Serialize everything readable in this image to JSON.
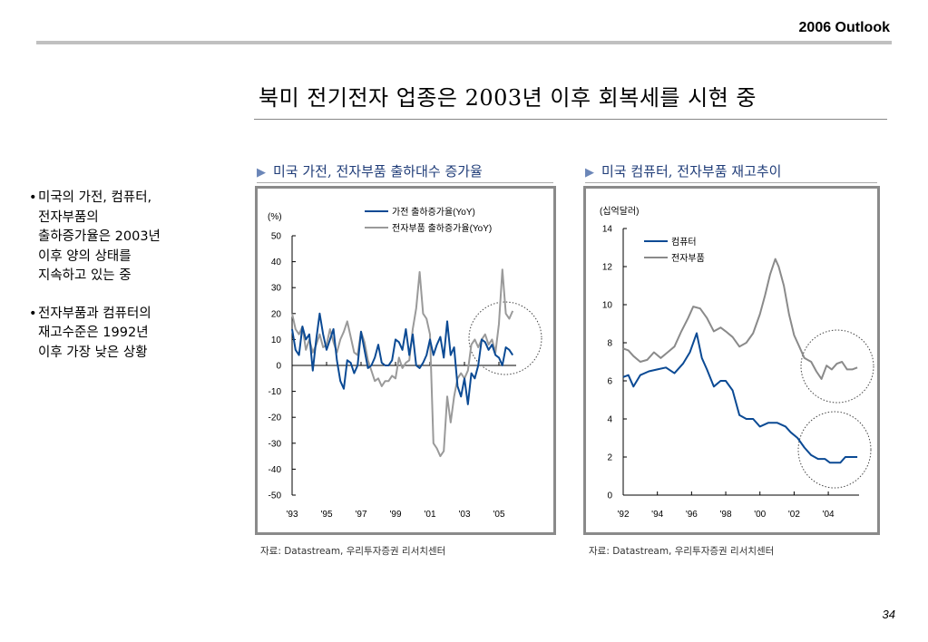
{
  "header": {
    "brand": "2006 Outlook",
    "page_number": "34"
  },
  "title": "북미 전기전자 업종은 2003년 이후 회복세를 시현 중",
  "bullets": [
    {
      "lines": [
        "미국의 가전, 컴퓨터,",
        "전자부품의",
        "출하증가율은 2003년",
        "이후 양의 상태를",
        "지속하고 있는 중"
      ]
    },
    {
      "lines": [
        "전자부품과 컴퓨터의",
        "재고수준은 1992년",
        "이후 가장 낮은 상황"
      ]
    }
  ],
  "panels": [
    {
      "subtitle": "미국 가전, 전자부품 출하대수 증가율",
      "source": "자료: Datastream, 우리투자증권 리서치센터"
    },
    {
      "subtitle": "미국 컴퓨터, 전자부품 재고추이",
      "source": "자료: Datastream, 우리투자증권 리서치센터"
    }
  ],
  "colors": {
    "blue_series": "#0b4a94",
    "gray_series": "#9a9a9a",
    "subtitle": "#1f3c78"
  },
  "chart_data": [
    {
      "type": "line",
      "title": "미국 가전, 전자부품 출하대수 증가율",
      "ylabel": "(%)",
      "ylim": [
        -50,
        50
      ],
      "yticks": [
        50,
        40,
        30,
        20,
        10,
        0,
        -10,
        -20,
        -30,
        -40,
        -50
      ],
      "xlim": [
        1993,
        2006
      ],
      "xticks": [
        1993,
        1995,
        1997,
        1999,
        2001,
        2003,
        2005
      ],
      "xticklabels": [
        "'93",
        "'95",
        "'97",
        "'99",
        "'01",
        "'03",
        "'05"
      ],
      "legend": "top-center",
      "annotation": "dotted circle around 2003-2005",
      "series": [
        {
          "name": "가전 출하증가율(YoY)",
          "color": "#0b4a94",
          "x": [
            1993.0,
            1993.2,
            1993.4,
            1993.6,
            1993.8,
            1994.0,
            1994.2,
            1994.4,
            1994.6,
            1994.8,
            1995.0,
            1995.2,
            1995.4,
            1995.6,
            1995.8,
            1996.0,
            1996.2,
            1996.4,
            1996.6,
            1996.8,
            1997.0,
            1997.2,
            1997.4,
            1997.6,
            1997.8,
            1998.0,
            1998.2,
            1998.4,
            1998.6,
            1998.8,
            1999.0,
            1999.2,
            1999.4,
            1999.6,
            1999.8,
            2000.0,
            2000.2,
            2000.4,
            2000.6,
            2000.8,
            2001.0,
            2001.2,
            2001.4,
            2001.6,
            2001.8,
            2002.0,
            2002.2,
            2002.4,
            2002.6,
            2002.8,
            2003.0,
            2003.2,
            2003.4,
            2003.6,
            2003.8,
            2004.0,
            2004.2,
            2004.4,
            2004.6,
            2004.8,
            2005.0,
            2005.2,
            2005.4,
            2005.6,
            2005.8
          ],
          "y": [
            14,
            6,
            4,
            15,
            10,
            12,
            -2,
            10,
            20,
            12,
            6,
            10,
            14,
            2,
            -6,
            -9,
            2,
            1,
            -3,
            0,
            13,
            6,
            -1,
            0,
            3,
            8,
            1,
            0,
            0,
            2,
            10,
            9,
            6,
            14,
            4,
            12,
            0,
            -1,
            1,
            4,
            10,
            4,
            8,
            11,
            3,
            17,
            4,
            7,
            -8,
            -12,
            -5,
            -15,
            -3,
            -5,
            0,
            10,
            9,
            6,
            8,
            4,
            3,
            0,
            7,
            6,
            4
          ]
        },
        {
          "name": "전자부품 출하증가율(YoY)",
          "color": "#9a9a9a",
          "x": [
            1993.0,
            1993.2,
            1993.4,
            1993.6,
            1993.8,
            1994.0,
            1994.2,
            1994.4,
            1994.6,
            1994.8,
            1995.0,
            1995.2,
            1995.4,
            1995.6,
            1995.8,
            1996.0,
            1996.2,
            1996.4,
            1996.6,
            1996.8,
            1997.0,
            1997.2,
            1997.4,
            1997.6,
            1997.8,
            1998.0,
            1998.2,
            1998.4,
            1998.6,
            1998.8,
            1999.0,
            1999.2,
            1999.4,
            1999.6,
            1999.8,
            2000.0,
            2000.2,
            2000.4,
            2000.6,
            2000.8,
            2001.0,
            2001.2,
            2001.4,
            2001.6,
            2001.8,
            2002.0,
            2002.2,
            2002.4,
            2002.6,
            2002.8,
            2003.0,
            2003.2,
            2003.4,
            2003.6,
            2003.8,
            2004.0,
            2004.2,
            2004.4,
            2004.6,
            2004.8,
            2005.0,
            2005.2,
            2005.4,
            2005.6,
            2005.8
          ],
          "y": [
            20,
            14,
            12,
            15,
            6,
            10,
            5,
            8,
            12,
            7,
            8,
            14,
            9,
            5,
            10,
            13,
            17,
            11,
            5,
            4,
            13,
            9,
            2,
            -2,
            -6,
            -5,
            -8,
            -6,
            -6,
            -4,
            -5,
            3,
            -1,
            1,
            2,
            14,
            22,
            36,
            20,
            18,
            12,
            -30,
            -32,
            -35,
            -33,
            -12,
            -22,
            -12,
            -5,
            -3,
            -5,
            -2,
            8,
            10,
            7,
            10,
            12,
            8,
            10,
            5,
            16,
            37,
            20,
            18,
            21
          ]
        }
      ]
    },
    {
      "type": "line",
      "title": "미국 컴퓨터, 전자부품 재고추이",
      "ylabel": "(십억달러)",
      "ylim": [
        0,
        14
      ],
      "yticks": [
        14,
        12,
        10,
        8,
        6,
        4,
        2,
        0
      ],
      "xlim": [
        1992,
        2005.8
      ],
      "xticks": [
        1992,
        1994,
        1996,
        1998,
        2000,
        2002,
        2004
      ],
      "xticklabels": [
        "'92",
        "'94",
        "'96",
        "'98",
        "'00",
        "'02",
        "'04"
      ],
      "legend": "top-left",
      "annotation": "dotted circles around 2004-2005 for both series",
      "series": [
        {
          "name": "컴퓨터",
          "color": "#0b4a94",
          "x": [
            1992.0,
            1992.3,
            1992.6,
            1993.0,
            1993.5,
            1994.0,
            1994.5,
            1995.0,
            1995.5,
            1995.9,
            1996.3,
            1996.6,
            1996.9,
            1997.3,
            1997.7,
            1998.0,
            1998.4,
            1998.8,
            1999.2,
            1999.6,
            2000.0,
            2000.5,
            2001.0,
            2001.5,
            2001.8,
            2002.2,
            2002.6,
            2003.0,
            2003.4,
            2003.8,
            2004.1,
            2004.4,
            2004.7,
            2005.0,
            2005.4,
            2005.7
          ],
          "y": [
            6.2,
            6.3,
            5.7,
            6.3,
            6.5,
            6.6,
            6.7,
            6.4,
            6.9,
            7.5,
            8.5,
            7.2,
            6.6,
            5.7,
            6.0,
            6.0,
            5.5,
            4.2,
            4.0,
            4.0,
            3.6,
            3.8,
            3.8,
            3.6,
            3.3,
            3.0,
            2.5,
            2.1,
            1.9,
            1.9,
            1.7,
            1.7,
            1.7,
            2.0,
            2.0,
            2.0
          ]
        },
        {
          "name": "전자부품",
          "color": "#8a8a8a",
          "x": [
            1992.0,
            1992.3,
            1992.6,
            1993.0,
            1993.4,
            1993.8,
            1994.2,
            1994.6,
            1995.0,
            1995.4,
            1995.8,
            1996.1,
            1996.5,
            1996.9,
            1997.3,
            1997.7,
            1998.0,
            1998.4,
            1998.8,
            1999.2,
            1999.6,
            2000.0,
            2000.3,
            2000.6,
            2000.9,
            2001.1,
            2001.4,
            2001.7,
            2002.0,
            2002.3,
            2002.6,
            2003.0,
            2003.3,
            2003.6,
            2003.9,
            2004.2,
            2004.5,
            2004.8,
            2005.1,
            2005.4,
            2005.7
          ],
          "y": [
            7.7,
            7.6,
            7.3,
            7.0,
            7.1,
            7.5,
            7.2,
            7.5,
            7.8,
            8.6,
            9.3,
            9.9,
            9.8,
            9.3,
            8.6,
            8.8,
            8.6,
            8.3,
            7.8,
            8.0,
            8.5,
            9.5,
            10.5,
            11.6,
            12.4,
            12.0,
            11.0,
            9.5,
            8.4,
            7.8,
            7.2,
            7.0,
            6.5,
            6.1,
            6.8,
            6.6,
            6.9,
            7.0,
            6.6,
            6.6,
            6.7
          ]
        }
      ]
    }
  ]
}
